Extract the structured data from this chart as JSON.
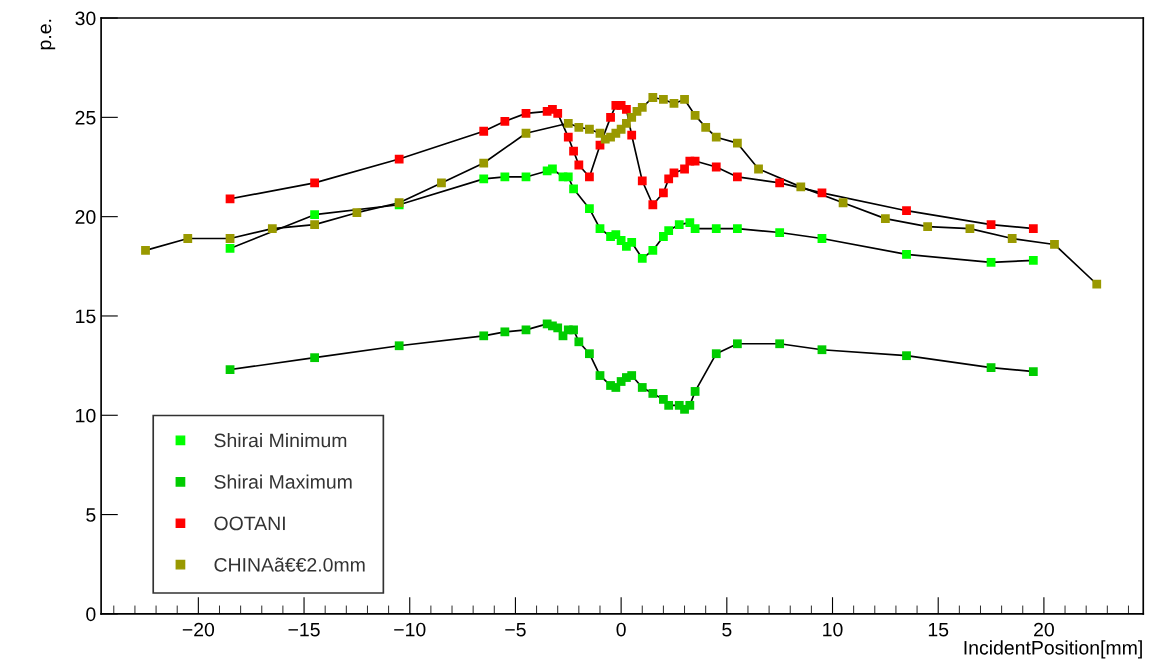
{
  "chart_data": {
    "type": "line",
    "xlabel": "IncidentPosition[mm]",
    "ylabel": "p.e.",
    "xlim": [
      -24.6,
      24.7
    ],
    "ylim": [
      0,
      30
    ],
    "xticks": [
      -20,
      -15,
      -10,
      -5,
      0,
      5,
      10,
      15,
      20
    ],
    "yticks": [
      0,
      5,
      10,
      15,
      20,
      25,
      30
    ],
    "grid": false,
    "legend": "bottom left",
    "marker": "square",
    "line_style": "solid",
    "series": [
      {
        "name": "Shirai Minimum",
        "color": "#00ff00",
        "x": [
          -18.5,
          -14.5,
          -10.5,
          -6.5,
          -5.5,
          -4.5,
          -3.5,
          -3.25,
          -2.75,
          -2.5,
          -2.25,
          -1.5,
          -1,
          -0.5,
          -0.25,
          0,
          0.25,
          0.5,
          1,
          1.5,
          2,
          2.25,
          2.75,
          3.25,
          3.5,
          4.5,
          5.5,
          7.5,
          9.5,
          13.5,
          17.5,
          19.5
        ],
        "values": [
          18.4,
          20.1,
          20.6,
          21.9,
          22.0,
          22.0,
          22.3,
          22.4,
          22.0,
          22.0,
          21.4,
          20.4,
          19.4,
          19.0,
          19.1,
          18.8,
          18.5,
          18.7,
          17.9,
          18.3,
          19.0,
          19.3,
          19.6,
          19.7,
          19.4,
          19.4,
          19.4,
          19.2,
          18.9,
          18.1,
          17.7,
          17.8
        ]
      },
      {
        "name": "Shirai Maximum",
        "color": "#00cc00",
        "x": [
          -18.5,
          -14.5,
          -10.5,
          -6.5,
          -5.5,
          -4.5,
          -3.5,
          -3.25,
          -3,
          -2.75,
          -2.5,
          -2.25,
          -2,
          -1.5,
          -1,
          -0.5,
          -0.25,
          0,
          0.25,
          0.5,
          1,
          1.5,
          2,
          2.25,
          2.75,
          3,
          3.25,
          3.5,
          4.5,
          5.5,
          7.5,
          9.5,
          13.5,
          17.5,
          19.5
        ],
        "values": [
          12.3,
          12.9,
          13.5,
          14.0,
          14.2,
          14.3,
          14.6,
          14.5,
          14.4,
          14.0,
          14.3,
          14.3,
          13.7,
          13.1,
          12.0,
          11.5,
          11.4,
          11.7,
          11.9,
          12.0,
          11.4,
          11.1,
          10.8,
          10.5,
          10.5,
          10.3,
          10.5,
          11.2,
          13.1,
          13.6,
          13.6,
          13.3,
          13.0,
          12.4,
          12.2
        ]
      },
      {
        "name": "OOTANI",
        "color": "#ff0000",
        "x": [
          -18.5,
          -14.5,
          -10.5,
          -6.5,
          -5.5,
          -4.5,
          -3.5,
          -3.25,
          -3,
          -2.5,
          -2.25,
          -2,
          -1.5,
          -1,
          -0.5,
          -0.25,
          0,
          0.25,
          0.5,
          1,
          1.5,
          2,
          2.25,
          2.5,
          3,
          3.25,
          3.5,
          4.5,
          5.5,
          7.5,
          9.5,
          13.5,
          17.5,
          19.5
        ],
        "values": [
          20.9,
          21.7,
          22.9,
          24.3,
          24.8,
          25.2,
          25.3,
          25.4,
          25.2,
          24.0,
          23.3,
          22.6,
          22.0,
          23.6,
          25.0,
          25.6,
          25.6,
          25.4,
          24.1,
          21.8,
          20.6,
          21.2,
          21.9,
          22.2,
          22.4,
          22.8,
          22.8,
          22.5,
          22.0,
          21.7,
          21.2,
          20.3,
          19.6,
          19.4
        ]
      },
      {
        "name": "CHINAã€€2.0mm",
        "color": "#999900",
        "x": [
          -22.5,
          -20.5,
          -18.5,
          -16.5,
          -14.5,
          -12.5,
          -10.5,
          -8.5,
          -6.5,
          -4.5,
          -2.5,
          -2,
          -1.5,
          -1,
          -0.75,
          -0.5,
          -0.25,
          0,
          0.25,
          0.5,
          0.75,
          1,
          1.5,
          2,
          2.5,
          3,
          3.5,
          4,
          4.5,
          5.5,
          6.5,
          8.5,
          10.5,
          12.5,
          14.5,
          16.5,
          18.5,
          20.5,
          22.5
        ],
        "values": [
          18.3,
          18.9,
          18.9,
          19.4,
          19.6,
          20.2,
          20.7,
          21.7,
          22.7,
          24.2,
          24.7,
          24.5,
          24.4,
          24.2,
          23.9,
          24.0,
          24.2,
          24.4,
          24.7,
          25.0,
          25.3,
          25.5,
          26.0,
          25.9,
          25.7,
          25.9,
          25.1,
          24.5,
          24.0,
          23.7,
          22.4,
          21.5,
          20.7,
          19.9,
          19.5,
          19.4,
          18.9,
          18.6,
          16.6
        ]
      }
    ]
  }
}
